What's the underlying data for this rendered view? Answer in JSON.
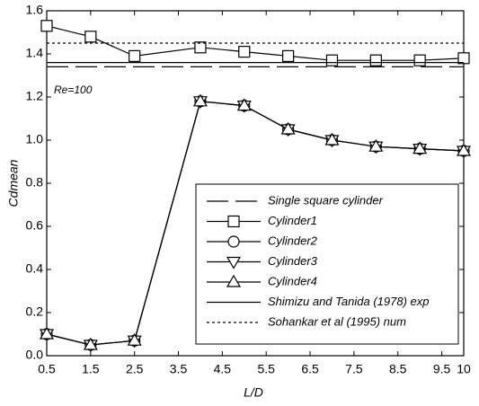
{
  "chart_data": {
    "type": "line",
    "x_label": "L/D",
    "y_label": "Cdmean",
    "annotation": "Re=100",
    "xlim": [
      0.5,
      10
    ],
    "ylim": [
      0,
      1.6
    ],
    "xticks": [
      0.5,
      1.5,
      2.5,
      3.5,
      4.5,
      5.5,
      6.5,
      7.5,
      8.5,
      9.5,
      10
    ],
    "yticks": [
      {
        "value": 0,
        "label": "0.0"
      },
      0.2,
      0.4,
      0.6,
      0.8,
      {
        "value": 1,
        "label": "1.0"
      },
      1.2,
      1.4,
      1.6
    ],
    "grid": false,
    "legend": "lower right",
    "series": [
      {
        "name": "Single square cylinder",
        "color": "#000000",
        "dash": "long",
        "marker": "none",
        "x": [
          0.5,
          10
        ],
        "values": [
          1.34,
          1.34
        ]
      },
      {
        "name": "Cylinder1",
        "color": "#000000",
        "dash": "solid",
        "marker": "square",
        "x": [
          0.5,
          1.5,
          2.5,
          4,
          5,
          6,
          7,
          8,
          9,
          10
        ],
        "values": [
          1.53,
          1.48,
          1.39,
          1.43,
          1.41,
          1.39,
          1.37,
          1.37,
          1.37,
          1.38
        ]
      },
      {
        "name": "Cylinder2",
        "color": "#000000",
        "dash": "solid",
        "marker": "circle",
        "x": [
          0.5,
          1.5,
          2.5,
          4,
          5,
          6,
          7,
          8,
          9,
          10
        ],
        "values": [
          0.1,
          0.05,
          0.07,
          1.18,
          1.16,
          1.05,
          1.0,
          0.97,
          0.96,
          0.95
        ]
      },
      {
        "name": "Cylinder3",
        "color": "#000000",
        "dash": "solid",
        "marker": "triangle-down",
        "x": [
          0.5,
          1.5,
          2.5,
          4,
          5,
          6,
          7,
          8,
          9,
          10
        ],
        "values": [
          0.1,
          0.05,
          0.07,
          1.18,
          1.16,
          1.05,
          1.0,
          0.97,
          0.96,
          0.95
        ]
      },
      {
        "name": "Cylinder4",
        "color": "#000000",
        "dash": "solid",
        "marker": "triangle-up",
        "x": [
          0.5,
          1.5,
          2.5,
          4,
          5,
          6,
          7,
          8,
          9,
          10
        ],
        "values": [
          0.1,
          0.05,
          0.07,
          1.18,
          1.16,
          1.05,
          1.0,
          0.97,
          0.96,
          0.95
        ]
      },
      {
        "name": "Shimizu and Tanida (1978) exp",
        "color": "#000000",
        "dash": "solid",
        "marker": "none",
        "x": [
          0.5,
          10
        ],
        "values": [
          1.36,
          1.36
        ]
      },
      {
        "name": "Sohankar et al (1995) num",
        "color": "#000000",
        "dash": "dotted",
        "marker": "none",
        "x": [
          0.5,
          10
        ],
        "values": [
          1.45,
          1.45
        ]
      }
    ]
  }
}
